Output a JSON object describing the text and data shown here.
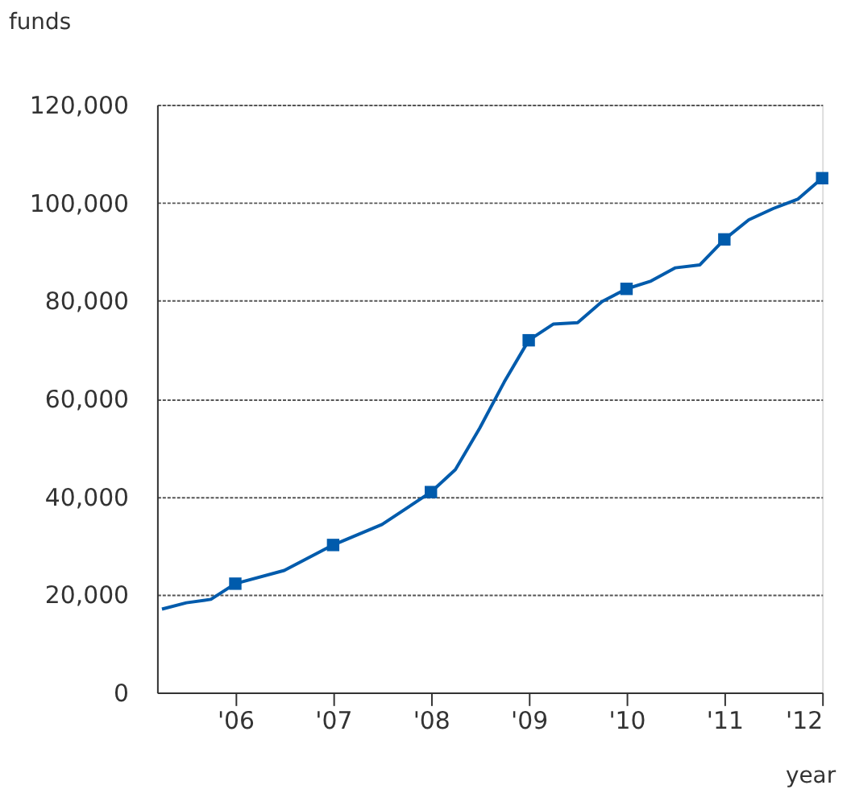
{
  "chart_data": {
    "type": "line",
    "xlabel": "year",
    "ylabel": "funds",
    "x": [
      2005.25,
      2005.5,
      2005.75,
      2006,
      2006.5,
      2007,
      2007.5,
      2008,
      2008.25,
      2008.5,
      2008.75,
      2009,
      2009.25,
      2009.5,
      2009.75,
      2010,
      2010.25,
      2010.5,
      2010.75,
      2011,
      2011.25,
      2011.5,
      2011.75,
      2012
    ],
    "series": [
      {
        "color": "#005bac",
        "marker": "none",
        "values": [
          17000,
          18300,
          19000,
          22200,
          24900,
          30100,
          34300,
          40900,
          45500,
          54000,
          63400,
          71900,
          75200,
          75500,
          79800,
          82400,
          84000,
          86700,
          87300,
          92500,
          96500,
          98800,
          100700,
          105000
        ]
      },
      {
        "type": "scatter",
        "color": "#005bac",
        "marker": "square",
        "x": [
          2006,
          2007,
          2008,
          2009,
          2010,
          2011,
          2012
        ],
        "values": [
          22200,
          30100,
          40900,
          71900,
          82400,
          92500,
          105000
        ]
      }
    ],
    "xlim": [
      2005.2,
      2012
    ],
    "xticks": [
      {
        "value": 2006,
        "label": "'06"
      },
      {
        "value": 2007,
        "label": "'07"
      },
      {
        "value": 2008,
        "label": "'08"
      },
      {
        "value": 2009,
        "label": "'09"
      },
      {
        "value": 2010,
        "label": "'10"
      },
      {
        "value": 2011,
        "label": "'11"
      },
      {
        "value": 2012,
        "label": "'12"
      }
    ],
    "ylim": [
      0,
      120000
    ],
    "yticks": [
      0,
      {
        "value": 20000,
        "label": "20,000"
      },
      {
        "value": 40000,
        "label": "40,000"
      },
      {
        "value": 60000,
        "label": "60,000"
      },
      {
        "value": 80000,
        "label": "80,000"
      },
      {
        "value": 100000,
        "label": "100,000"
      },
      {
        "value": 120000,
        "label": "120,000"
      }
    ],
    "grid": "y",
    "line_style": "solid"
  }
}
